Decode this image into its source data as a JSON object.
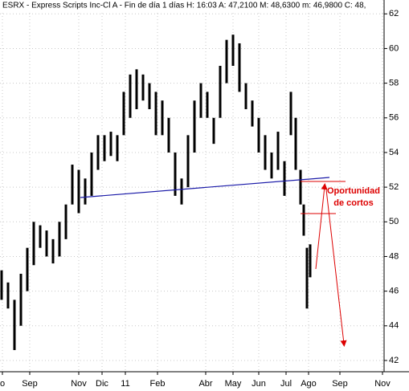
{
  "chart_data": {
    "type": "ohlc",
    "title": "ESRX - Express Scripts Inc-Cl A - Fin de día 1 días H: 16:03 A: 47,2100 M: 48,6300 m: 46,9800 C: 48,",
    "annotations": [
      "Oportunidad",
      "de cortos"
    ],
    "x": [
      2,
      10,
      18,
      26,
      34,
      42,
      50,
      58,
      66,
      74,
      82,
      90,
      98,
      106,
      114,
      122,
      130,
      138,
      146,
      154,
      162,
      170,
      178,
      186,
      194,
      202,
      210,
      218,
      226,
      234,
      242,
      250,
      258,
      266,
      274,
      282,
      290,
      298,
      306,
      314,
      322,
      330,
      338,
      346,
      354,
      362,
      368,
      374,
      378,
      382,
      386
    ],
    "high": [
      47.2,
      46.5,
      45.5,
      47,
      48.5,
      50,
      49.8,
      49.5,
      49,
      50,
      51,
      53.3,
      53,
      52.5,
      54,
      55,
      55,
      55.2,
      55,
      57.5,
      58.5,
      58.8,
      58.5,
      58,
      57.5,
      57,
      56,
      54,
      52.5,
      55,
      57,
      58,
      57.5,
      56,
      59,
      60.5,
      60.8,
      60.3,
      58,
      57,
      56,
      55,
      54,
      55.2,
      53.5,
      57.5,
      56,
      53,
      51,
      48.5,
      48.7
    ],
    "low": [
      45.5,
      45,
      42.6,
      44,
      46,
      47.5,
      48.5,
      48,
      47.6,
      48,
      49,
      51,
      50.5,
      51,
      51.5,
      53,
      53.5,
      53.8,
      53.5,
      55,
      56,
      56.5,
      57,
      56.5,
      55,
      55,
      54,
      51.5,
      51,
      52,
      54,
      56,
      56,
      54.5,
      56,
      58,
      59,
      57.5,
      56.5,
      55.5,
      54,
      53,
      52.5,
      53,
      51.5,
      55,
      53,
      51,
      49.2,
      45,
      46.8
    ],
    "color": "#000000",
    "xlim": [
      0,
      478
    ],
    "xticks": [
      {
        "value": 3,
        "label": "o"
      },
      {
        "value": 37,
        "label": "Sep"
      },
      {
        "value": 98,
        "label": "Nov"
      },
      {
        "value": 127,
        "label": "Dic"
      },
      {
        "value": 156,
        "label": "11"
      },
      {
        "value": 196,
        "label": "Feb"
      },
      {
        "value": 256,
        "label": "Abr"
      },
      {
        "value": 290,
        "label": "May"
      },
      {
        "value": 322,
        "label": "Jun"
      },
      {
        "value": 356,
        "label": "Jul"
      },
      {
        "value": 384,
        "label": "Ago"
      },
      {
        "value": 423,
        "label": "Sep"
      },
      {
        "value": 476,
        "label": "Nov"
      }
    ],
    "ylim": [
      41.35,
      62.8
    ],
    "yticks": [
      42,
      44,
      46,
      48,
      50,
      52,
      54,
      56,
      58,
      60,
      62
    ],
    "grid": true
  }
}
